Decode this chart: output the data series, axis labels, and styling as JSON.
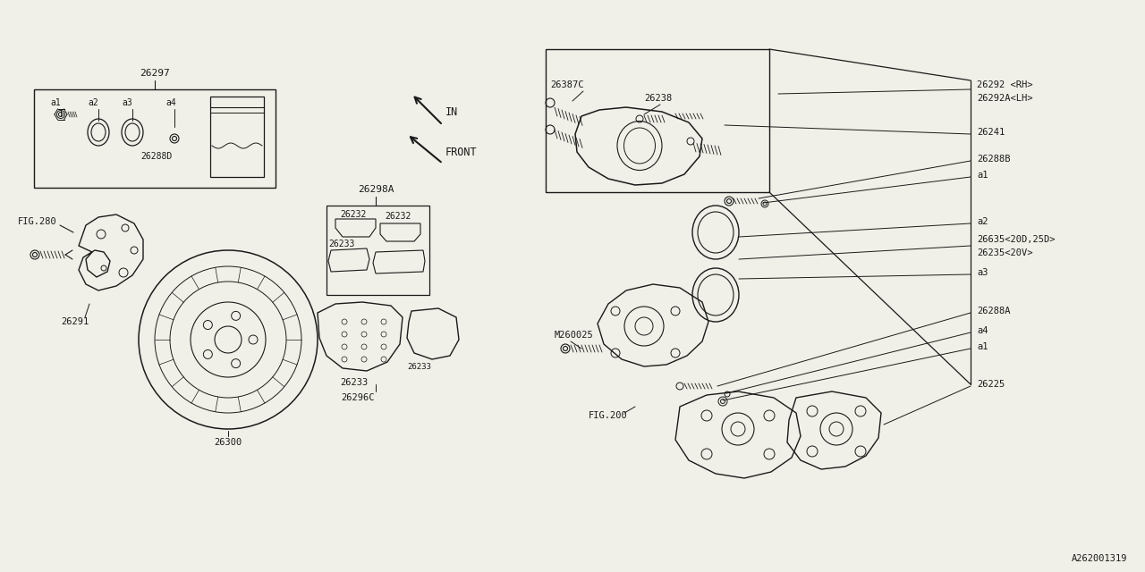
{
  "bg_color": "#f0f0e8",
  "line_color": "#1a1a1a",
  "catalog_number": "A262001319",
  "font_size": 7.5,
  "parts": {
    "26297": "26297",
    "26288D": "26288D",
    "a1": "a1",
    "a2": "a2",
    "a3": "a3",
    "a4": "a4",
    "FIG280": "FIG.280",
    "26291": "26291",
    "26300": "26300",
    "26298A": "26298A",
    "26232": "26232",
    "26233": "26233",
    "26296C": "26296C",
    "26387C": "26387C",
    "26238": "26238",
    "26292RH": "26292 <RH>",
    "26292ALH": "26292A<LH>",
    "26241": "26241",
    "26288B": "26288B",
    "a2r": "a2",
    "26635": "26635<20D,25D>",
    "26235": "26235<20V>",
    "a3r": "a3",
    "M260025": "M260025",
    "26288A": "26288A",
    "a4r": "a4",
    "a1rb": "a1",
    "26225": "26225",
    "FIG200": "FIG.200",
    "IN": "IN",
    "FRONT": "FRONT"
  }
}
